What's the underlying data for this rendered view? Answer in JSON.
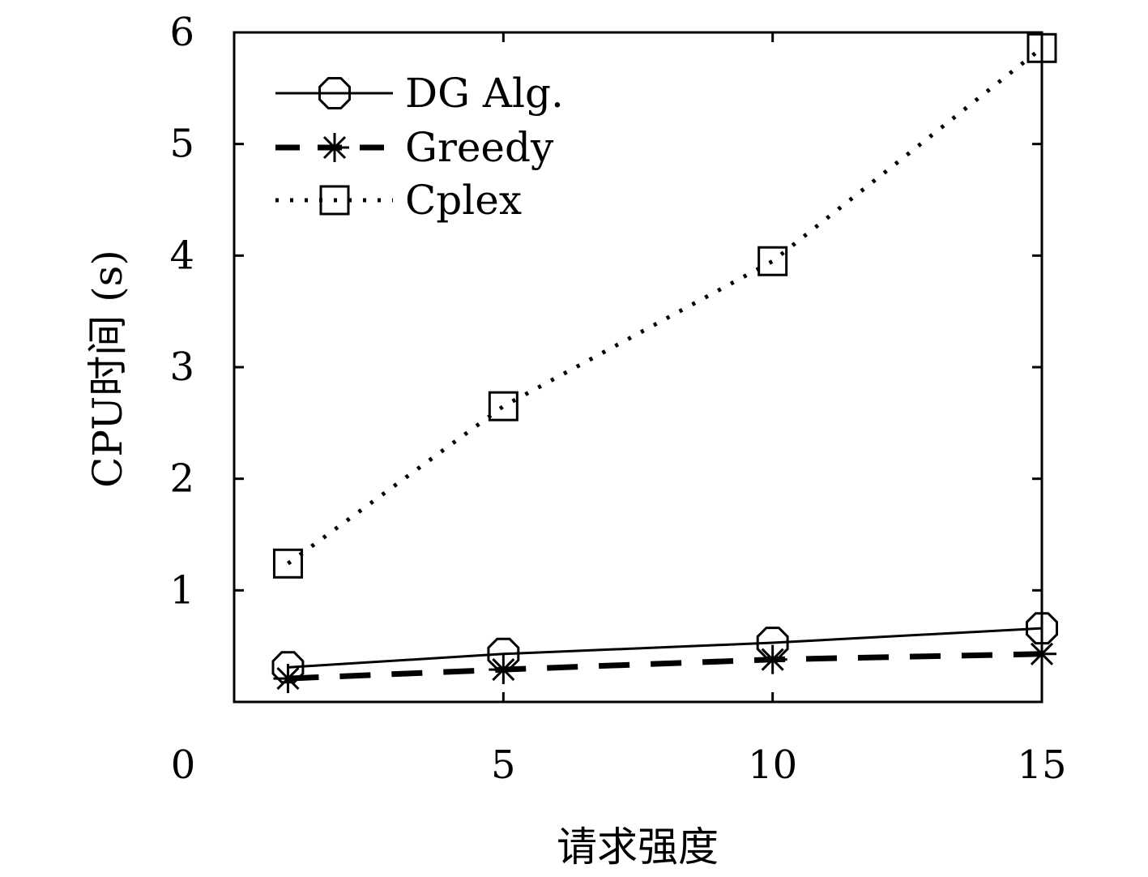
{
  "chart_data": {
    "type": "line",
    "title": "",
    "xlabel": "请求强度",
    "ylabel": "CPU时间 (s)",
    "xlim": [
      0,
      15
    ],
    "ylim": [
      0,
      6
    ],
    "x_ticks": [
      "0",
      "5",
      "10",
      "15"
    ],
    "y_ticks": [
      "1",
      "2",
      "3",
      "4",
      "5",
      "6"
    ],
    "grid": false,
    "legend_position": "top-left",
    "series": [
      {
        "name": "DG Alg.",
        "line_style": "solid",
        "marker": "circle",
        "color": "#000000",
        "x": [
          1,
          5,
          10,
          15
        ],
        "y": [
          0.31,
          0.43,
          0.53,
          0.66
        ]
      },
      {
        "name": "Greedy",
        "line_style": "dashed",
        "marker": "asterisk",
        "color": "#000000",
        "x": [
          1,
          5,
          10,
          15
        ],
        "y": [
          0.21,
          0.29,
          0.38,
          0.43
        ]
      },
      {
        "name": "Cplex",
        "line_style": "dotted",
        "marker": "square",
        "color": "#000000",
        "x": [
          1,
          5,
          10,
          15
        ],
        "y": [
          1.24,
          2.65,
          3.95,
          5.86
        ]
      }
    ]
  }
}
